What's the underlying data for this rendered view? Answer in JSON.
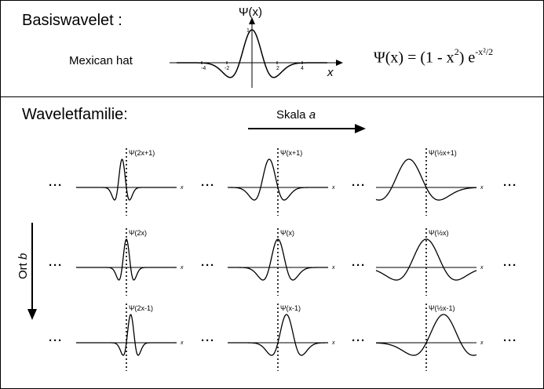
{
  "top": {
    "title": "Basiswavelet :",
    "wavelet_name": "Mexican hat",
    "axis_y_label": "Ψ(x)",
    "axis_x_label": "x",
    "tick_labels": [
      "-4",
      "-2",
      "2",
      "4"
    ],
    "y_tick_label": "1",
    "formula": {
      "lhs": "Ψ(x) = (1 - x",
      "sq": "2",
      "mid": ") e",
      "exp": "-x²/2"
    }
  },
  "bottom": {
    "title": "Waveletfamilie:",
    "scale_label_text": "Skala ",
    "scale_label_var": "a",
    "position_label_text": "Ort ",
    "position_label_var": "b",
    "ellipsis": "···",
    "x_label": "x",
    "panel_labels": [
      [
        "Ψ(2x+1)",
        "Ψ(x+1)",
        "Ψ(½x+1)"
      ],
      [
        "Ψ(2x)",
        "Ψ(x)",
        "Ψ(½x)"
      ],
      [
        "Ψ(2x-1)",
        "Ψ(x-1)",
        "Ψ(½x-1)"
      ]
    ],
    "panel_params": {
      "scales": [
        2,
        1,
        0.5
      ],
      "shifts": [
        1,
        0,
        -1
      ]
    }
  }
}
